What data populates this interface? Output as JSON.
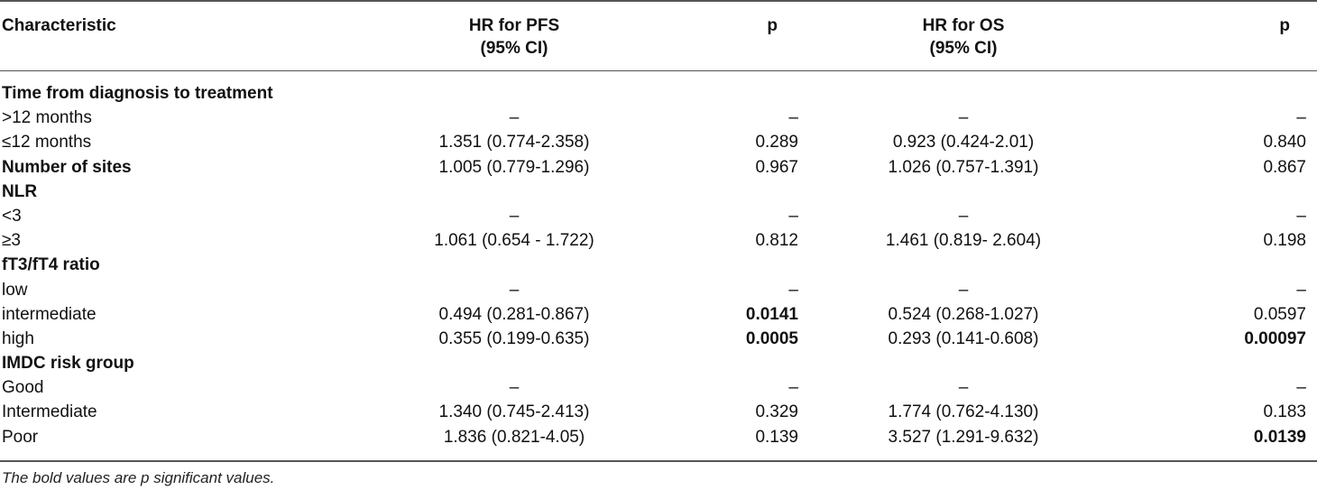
{
  "header": {
    "col0": "Characteristic",
    "col1_line1": "HR for PFS",
    "col1_line2": "(95% CI)",
    "col2": "p",
    "col3_line1": "HR for OS",
    "col3_line2": "(95% CI)",
    "col4": "p"
  },
  "rows": [
    {
      "label": "Time from diagnosis to treatment",
      "heading": true
    },
    {
      "label": ">12 months",
      "hr_pfs": "–",
      "p_pfs": "–",
      "hr_os": "–",
      "p_os": "–"
    },
    {
      "label": "≤12 months",
      "hr_pfs": "1.351 (0.774-2.358)",
      "p_pfs": "0.289",
      "hr_os": "0.923 (0.424-2.01)",
      "p_os": "0.840"
    },
    {
      "label": "Number of sites",
      "heading": true,
      "hr_pfs": "1.005 (0.779-1.296)",
      "p_pfs": "0.967",
      "hr_os": "1.026 (0.757-1.391)",
      "p_os": "0.867"
    },
    {
      "label": "NLR",
      "heading": true
    },
    {
      "label": "<3",
      "hr_pfs": "–",
      "p_pfs": "–",
      "hr_os": "–",
      "p_os": "–"
    },
    {
      "label": "≥3",
      "hr_pfs": "1.061 (0.654 - 1.722)",
      "p_pfs": "0.812",
      "hr_os": "1.461 (0.819- 2.604)",
      "p_os": "0.198"
    },
    {
      "label": "fT3/fT4 ratio",
      "heading": true
    },
    {
      "label": "low",
      "hr_pfs": "–",
      "p_pfs": "–",
      "hr_os": "–",
      "p_os": "–"
    },
    {
      "label": "intermediate",
      "hr_pfs": "0.494 (0.281-0.867)",
      "p_pfs": "0.0141",
      "p_pfs_bold": true,
      "hr_os": "0.524 (0.268-1.027)",
      "p_os": "0.0597"
    },
    {
      "label": "high",
      "hr_pfs": "0.355 (0.199-0.635)",
      "p_pfs": "0.0005",
      "p_pfs_bold": true,
      "hr_os": "0.293 (0.141-0.608)",
      "p_os": "0.00097",
      "p_os_bold": true
    },
    {
      "label": "IMDC risk group",
      "heading": true
    },
    {
      "label": "Good",
      "hr_pfs": "–",
      "p_pfs": "–",
      "hr_os": "–",
      "p_os": "–"
    },
    {
      "label": "Intermediate",
      "hr_pfs": "1.340 (0.745-2.413)",
      "p_pfs": "0.329",
      "hr_os": "1.774 (0.762-4.130)",
      "p_os": "0.183"
    },
    {
      "label": "Poor",
      "hr_pfs": "1.836 (0.821-4.05)",
      "p_pfs": "0.139",
      "hr_os": "3.527 (1.291-9.632)",
      "p_os": "0.0139",
      "p_os_bold": true
    }
  ],
  "footnote": "The bold values are p significant values."
}
